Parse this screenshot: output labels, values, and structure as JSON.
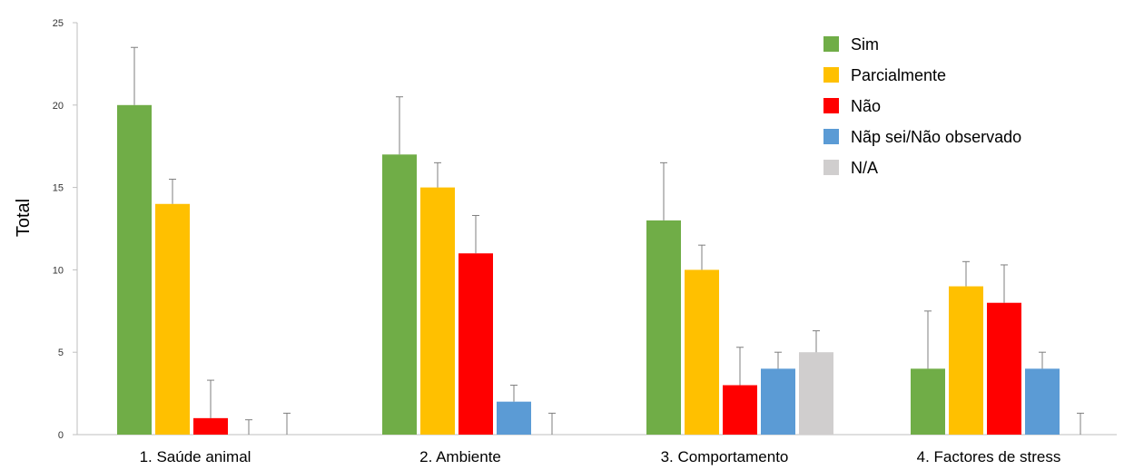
{
  "chart_data": {
    "type": "bar",
    "title": "",
    "xlabel": "",
    "ylabel": "Total",
    "ylim": [
      0,
      25
    ],
    "yticks": [
      0,
      5,
      10,
      15,
      20,
      25
    ],
    "grid": false,
    "legend_position": "top-right",
    "categories": [
      "1. Saúde animal",
      "2. Ambiente",
      "3. Comportamento",
      "4. Factores de stress"
    ],
    "series": [
      {
        "name": "Sim",
        "color": "#70AD47",
        "values": [
          20,
          17,
          13,
          4
        ],
        "errors": [
          3.5,
          3.5,
          3.5,
          3.5
        ]
      },
      {
        "name": "Parcialmente",
        "color": "#FFC000",
        "values": [
          14,
          15,
          10,
          9
        ],
        "errors": [
          1.5,
          1.5,
          1.5,
          1.5
        ]
      },
      {
        "name": "Não",
        "color": "#FF0000",
        "values": [
          1,
          11,
          3,
          8
        ],
        "errors": [
          2.3,
          2.3,
          2.3,
          2.3
        ]
      },
      {
        "name": "Nãp sei/Não observado",
        "color": "#5B9BD5",
        "values": [
          0,
          2,
          4,
          4
        ],
        "errors": [
          0.9,
          1.0,
          1.0,
          1.0
        ]
      },
      {
        "name": "N/A",
        "color": "#D0CECE",
        "values": [
          0,
          0,
          5,
          0
        ],
        "errors": [
          1.3,
          1.3,
          1.3,
          1.3
        ]
      }
    ]
  }
}
